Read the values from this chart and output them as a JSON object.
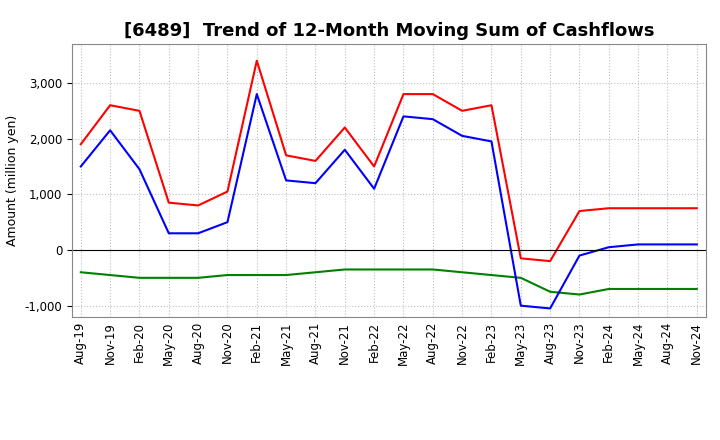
{
  "title": "[6489]  Trend of 12-Month Moving Sum of Cashflows",
  "ylabel": "Amount (million yen)",
  "x_labels": [
    "Aug-19",
    "Nov-19",
    "Feb-20",
    "May-20",
    "Aug-20",
    "Nov-20",
    "Feb-21",
    "May-21",
    "Aug-21",
    "Nov-21",
    "Feb-22",
    "May-22",
    "Aug-22",
    "Nov-22",
    "Feb-23",
    "May-23",
    "Aug-23",
    "Nov-23",
    "Feb-24",
    "May-24",
    "Aug-24",
    "Nov-24"
  ],
  "operating_cashflow": [
    1900,
    2600,
    2500,
    850,
    800,
    1050,
    3400,
    1700,
    1600,
    2200,
    1500,
    2800,
    2800,
    2500,
    2600,
    -150,
    -200,
    700,
    750,
    750,
    750,
    750
  ],
  "investing_cashflow": [
    -400,
    -450,
    -500,
    -500,
    -500,
    -450,
    -450,
    -450,
    -400,
    -350,
    -350,
    -350,
    -350,
    -400,
    -450,
    -500,
    -750,
    -800,
    -700,
    -700,
    -700,
    -700
  ],
  "free_cashflow": [
    1500,
    2150,
    1450,
    300,
    300,
    500,
    2800,
    1250,
    1200,
    1800,
    1100,
    2400,
    2350,
    2050,
    1950,
    -1000,
    -1050,
    -100,
    50,
    100,
    100,
    100
  ],
  "line_colors": {
    "operating": "#ff0000",
    "investing": "#008000",
    "free": "#0000ff"
  },
  "ylim": [
    -1200,
    3700
  ],
  "yticks": [
    -1000,
    0,
    1000,
    2000,
    3000
  ],
  "background_color": "#ffffff",
  "grid_color": "#c0c0c0",
  "title_fontsize": 13,
  "label_fontsize": 9,
  "tick_fontsize": 8.5
}
